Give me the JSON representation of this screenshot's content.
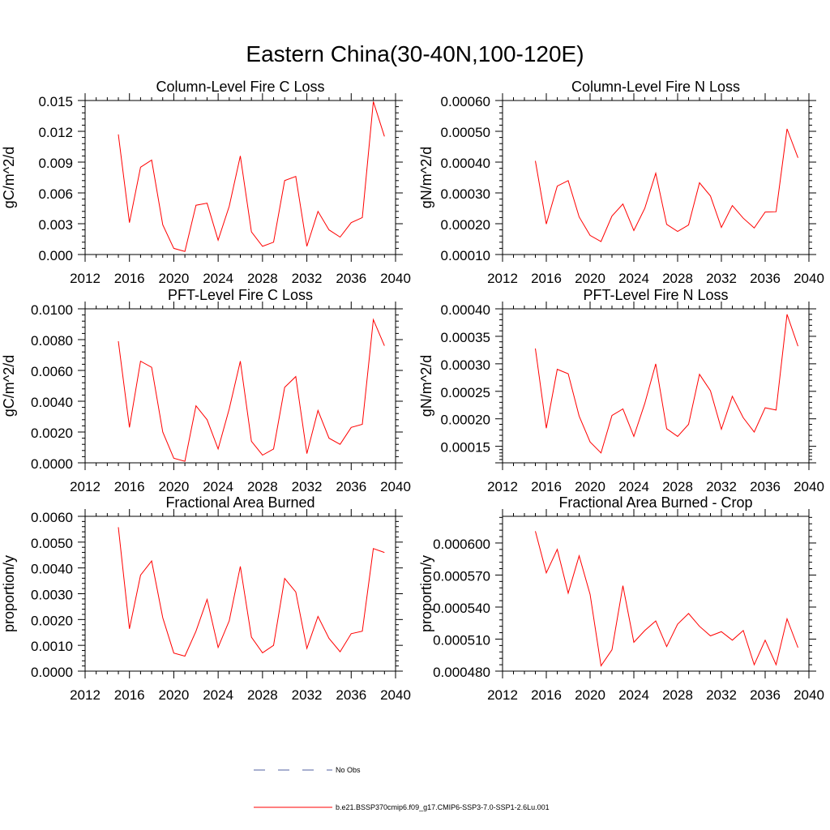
{
  "figure": {
    "title": "Eastern China(30-40N,100-120E)",
    "legend": [
      {
        "label": "No Obs",
        "color": "#5060a0",
        "style": "dashed"
      },
      {
        "label": "b.e21.BSSP370cmip6.f09_g17.CMIP6-SSP3-7.0-SSP1-2.6Lu.001",
        "color": "#ff0000",
        "style": "solid"
      }
    ]
  },
  "chart_data": [
    {
      "type": "line",
      "title": "Column-Level Fire C Loss",
      "xlabel": "",
      "ylabel": "gC/m^2/d",
      "xlim": [
        2012,
        2040
      ],
      "xticks": [
        "2012",
        "2016",
        "2020",
        "2024",
        "2028",
        "2032",
        "2036",
        "2040"
      ],
      "ylim": [
        0.0,
        0.015
      ],
      "yticks": [
        "0.000",
        "0.003",
        "0.006",
        "0.009",
        "0.012",
        "0.015"
      ],
      "x": [
        2015,
        2016,
        2017,
        2018,
        2019,
        2020,
        2021,
        2022,
        2023,
        2024,
        2025,
        2026,
        2027,
        2028,
        2029,
        2030,
        2031,
        2032,
        2033,
        2034,
        2035,
        2036,
        2037,
        2038,
        2039
      ],
      "series": [
        {
          "name": "b.e21.BSSP370cmip6.f09_g17.CMIP6-SSP3-7.0-SSP1-2.6Lu.001",
          "color": "#ff0000",
          "values": [
            0.0117,
            0.0031,
            0.0085,
            0.0092,
            0.0029,
            0.0006,
            0.0003,
            0.0048,
            0.005,
            0.0014,
            0.0047,
            0.0096,
            0.0022,
            0.0008,
            0.0012,
            0.0072,
            0.0076,
            0.0008,
            0.0042,
            0.0024,
            0.0017,
            0.0031,
            0.0036,
            0.0149,
            0.0115
          ]
        }
      ]
    },
    {
      "type": "line",
      "title": "Column-Level Fire N Loss",
      "xlabel": "",
      "ylabel": "gN/m^2/d",
      "xlim": [
        2012,
        2040
      ],
      "xticks": [
        "2012",
        "2016",
        "2020",
        "2024",
        "2028",
        "2032",
        "2036",
        "2040"
      ],
      "ylim": [
        0.0001,
        0.0006
      ],
      "yticks": [
        "0.00010",
        "0.00020",
        "0.00030",
        "0.00040",
        "0.00050",
        "0.00060"
      ],
      "x": [
        2015,
        2016,
        2017,
        2018,
        2019,
        2020,
        2021,
        2022,
        2023,
        2024,
        2025,
        2026,
        2027,
        2028,
        2029,
        2030,
        2031,
        2032,
        2033,
        2034,
        2035,
        2036,
        2037,
        2038,
        2039
      ],
      "series": [
        {
          "name": "b.e21.BSSP370cmip6.f09_g17.CMIP6-SSP3-7.0-SSP1-2.6Lu.001",
          "color": "#ff0000",
          "values": [
            0.000404,
            0.000199,
            0.000322,
            0.00034,
            0.000222,
            0.000162,
            0.000142,
            0.000225,
            0.000264,
            0.000178,
            0.00025,
            0.000364,
            0.000198,
            0.000175,
            0.000196,
            0.000333,
            0.00029,
            0.000188,
            0.000259,
            0.000218,
            0.000186,
            0.000238,
            0.000239,
            0.000508,
            0.000414
          ]
        }
      ]
    },
    {
      "type": "line",
      "title": "PFT-Level Fire C Loss",
      "xlabel": "",
      "ylabel": "gC/m^2/d",
      "xlim": [
        2012,
        2040
      ],
      "xticks": [
        "2012",
        "2016",
        "2020",
        "2024",
        "2028",
        "2032",
        "2036",
        "2040"
      ],
      "ylim": [
        0.0,
        0.01
      ],
      "yticks": [
        "0.0000",
        "0.0020",
        "0.0040",
        "0.0060",
        "0.0080",
        "0.0100"
      ],
      "x": [
        2015,
        2016,
        2017,
        2018,
        2019,
        2020,
        2021,
        2022,
        2023,
        2024,
        2025,
        2026,
        2027,
        2028,
        2029,
        2030,
        2031,
        2032,
        2033,
        2034,
        2035,
        2036,
        2037,
        2038,
        2039
      ],
      "series": [
        {
          "name": "b.e21.BSSP370cmip6.f09_g17.CMIP6-SSP3-7.0-SSP1-2.6Lu.001",
          "color": "#ff0000",
          "values": [
            0.0079,
            0.0023,
            0.0066,
            0.0062,
            0.002,
            0.0003,
            0.0001,
            0.0037,
            0.0028,
            0.0009,
            0.0035,
            0.0066,
            0.0014,
            0.0005,
            0.0009,
            0.0049,
            0.0056,
            0.0006,
            0.0034,
            0.0016,
            0.0012,
            0.0023,
            0.0025,
            0.0093,
            0.0076
          ]
        }
      ]
    },
    {
      "type": "line",
      "title": "PFT-Level Fire N Loss",
      "xlabel": "",
      "ylabel": "gN/m^2/d",
      "xlim": [
        2012,
        2040
      ],
      "xticks": [
        "2012",
        "2016",
        "2020",
        "2024",
        "2028",
        "2032",
        "2036",
        "2040"
      ],
      "ylim": [
        0.00012,
        0.0004
      ],
      "yticks": [
        "",
        "0.00015",
        "0.00020",
        "0.00025",
        "0.00030",
        "0.00035",
        "0.00040"
      ],
      "ytick_values": [
        0.00012,
        0.00015,
        0.0002,
        0.00025,
        0.0003,
        0.00035,
        0.0004
      ],
      "x": [
        2015,
        2016,
        2017,
        2018,
        2019,
        2020,
        2021,
        2022,
        2023,
        2024,
        2025,
        2026,
        2027,
        2028,
        2029,
        2030,
        2031,
        2032,
        2033,
        2034,
        2035,
        2036,
        2037,
        2038,
        2039
      ],
      "series": [
        {
          "name": "b.e21.BSSP370cmip6.f09_g17.CMIP6-SSP3-7.0-SSP1-2.6Lu.001",
          "color": "#ff0000",
          "values": [
            0.000328,
            0.000183,
            0.00029,
            0.000282,
            0.000205,
            0.000158,
            0.000138,
            0.000206,
            0.000218,
            0.000168,
            0.000228,
            0.0003,
            0.000182,
            0.000168,
            0.00019,
            0.000281,
            0.000251,
            0.000181,
            0.000241,
            0.000202,
            0.000176,
            0.00022,
            0.000216,
            0.00039,
            0.000332
          ]
        }
      ]
    },
    {
      "type": "line",
      "title": "Fractional Area Burned",
      "xlabel": "",
      "ylabel": "proportion/y",
      "xlim": [
        2012,
        2040
      ],
      "xticks": [
        "2012",
        "2016",
        "2020",
        "2024",
        "2028",
        "2032",
        "2036",
        "2040"
      ],
      "ylim": [
        0.0,
        0.006
      ],
      "yticks": [
        "0.0000",
        "0.0010",
        "0.0020",
        "0.0030",
        "0.0040",
        "0.0050",
        "0.0060"
      ],
      "x": [
        2015,
        2016,
        2017,
        2018,
        2019,
        2020,
        2021,
        2022,
        2023,
        2024,
        2025,
        2026,
        2027,
        2028,
        2029,
        2030,
        2031,
        2032,
        2033,
        2034,
        2035,
        2036,
        2037,
        2038,
        2039
      ],
      "series": [
        {
          "name": "b.e21.BSSP370cmip6.f09_g17.CMIP6-SSP3-7.0-SSP1-2.6Lu.001",
          "color": "#ff0000",
          "values": [
            0.00558,
            0.00164,
            0.00372,
            0.00427,
            0.00207,
            0.0007,
            0.00058,
            0.00155,
            0.00278,
            0.00092,
            0.00195,
            0.00406,
            0.00132,
            0.00071,
            0.001,
            0.00359,
            0.00307,
            0.00088,
            0.00212,
            0.00127,
            0.00075,
            0.00145,
            0.00155,
            0.00475,
            0.0046
          ]
        }
      ]
    },
    {
      "type": "line",
      "title": "Fractional Area Burned - Crop",
      "xlabel": "",
      "ylabel": "proportion/y",
      "xlim": [
        2012,
        2040
      ],
      "xticks": [
        "2012",
        "2016",
        "2020",
        "2024",
        "2028",
        "2032",
        "2036",
        "2040"
      ],
      "ylim": [
        0.00048,
        0.000625
      ],
      "yticks": [
        "0.000480",
        "0.000510",
        "0.000540",
        "0.000570",
        "0.000600"
      ],
      "ytick_values": [
        0.00048,
        0.00051,
        0.00054,
        0.00057,
        0.0006
      ],
      "x": [
        2015,
        2016,
        2017,
        2018,
        2019,
        2020,
        2021,
        2022,
        2023,
        2024,
        2025,
        2026,
        2027,
        2028,
        2029,
        2030,
        2031,
        2032,
        2033,
        2034,
        2035,
        2036,
        2037,
        2038,
        2039
      ],
      "series": [
        {
          "name": "b.e21.BSSP370cmip6.f09_g17.CMIP6-SSP3-7.0-SSP1-2.6Lu.001",
          "color": "#ff0000",
          "values": [
            0.000611,
            0.000572,
            0.000594,
            0.000553,
            0.000588,
            0.000552,
            0.000485,
            0.0005,
            0.00056,
            0.000507,
            0.000518,
            0.000527,
            0.000503,
            0.000524,
            0.000534,
            0.000522,
            0.000513,
            0.000517,
            0.000509,
            0.000518,
            0.000486,
            0.000509,
            0.000486,
            0.000529,
            0.000502
          ]
        }
      ]
    }
  ]
}
